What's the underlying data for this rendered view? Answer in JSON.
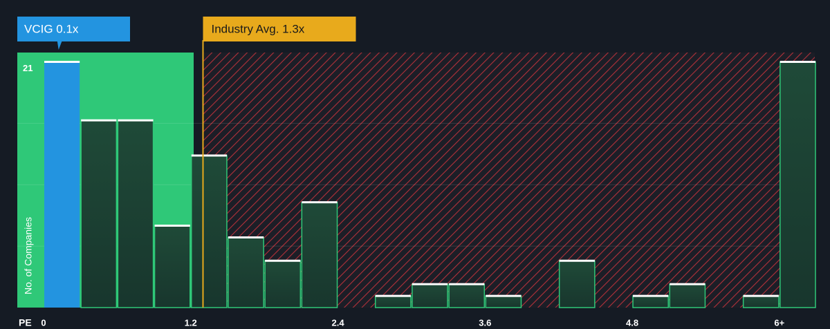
{
  "chart_data": {
    "type": "histogram",
    "x_label": "PE",
    "y_label": "No. of Companies",
    "bins": [
      0,
      0.3,
      0.6,
      0.9,
      1.2,
      1.5,
      1.8,
      2.1,
      2.4,
      2.7,
      3.0,
      3.3,
      3.6,
      3.9,
      4.2,
      4.5,
      4.8,
      5.1,
      5.4,
      5.7,
      6.0,
      6.3
    ],
    "values": [
      21,
      16,
      16,
      7,
      13,
      6,
      4,
      9,
      0,
      1,
      2,
      2,
      1,
      0,
      4,
      0,
      1,
      2,
      0,
      1,
      21
    ],
    "xlim": [
      0,
      6.3
    ],
    "ylim": [
      0,
      21.8
    ],
    "xticks": [
      0,
      1.2,
      2.4,
      3.6,
      4.8,
      {
        "value": 6,
        "label": "6+"
      }
    ],
    "yticks": [
      21
    ],
    "ygrid": [
      5.25,
      10.5,
      15.75
    ],
    "company": {
      "label": "VCIG 0.1x",
      "value": 0.1,
      "color": "#2394e0"
    },
    "industry_avg": {
      "label": "Industry Avg. 1.3x",
      "value": 1.3,
      "color": "#e8aa1c"
    },
    "color": "#1f4a38",
    "hatch_color": "#c0303a"
  }
}
